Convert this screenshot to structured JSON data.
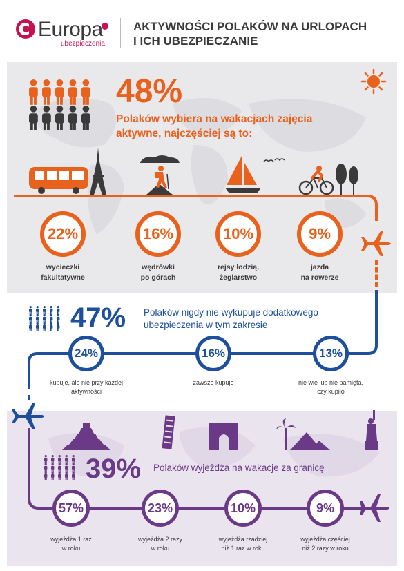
{
  "header": {
    "brand": "Europa",
    "brand_sub": "ubezpieczenia",
    "title_line1": "AKTYWNOŚCI POLAKÓW NA URLOPACH",
    "title_line2": "I ICH UBEZPIECZANIE"
  },
  "colors": {
    "brand_red": "#c6124f",
    "orange": "#e8621e",
    "blue": "#1d4f9c",
    "purple": "#6b3a86",
    "dark": "#3a3a3a",
    "panel_grey": "#e9e9ec",
    "panel_lilac": "#eae4ee"
  },
  "section1": {
    "percent": "48%",
    "text_line1": "Polaków wybiera na wakacjach zajęcia",
    "text_line2": "aktywne, najczęściej są to:",
    "people_highlighted": 5,
    "people_total": 10,
    "icons": [
      "bus-icon",
      "eiffel-tower-icon",
      "hiker-icon",
      "sailboat-icon",
      "cyclist-icon",
      "trees-icon",
      "sun-icon",
      "plane-icon"
    ],
    "items": [
      {
        "value": "22%",
        "label_line1": "wycieczki",
        "label_line2": "fakultatywne"
      },
      {
        "value": "16%",
        "label_line1": "wędrówki",
        "label_line2": "po górach"
      },
      {
        "value": "10%",
        "label_line1": "rejsy łodzią,",
        "label_line2": "żeglarstwo"
      },
      {
        "value": "9%",
        "label_line1": "jazda",
        "label_line2": "na rowerze"
      }
    ]
  },
  "section2": {
    "percent": "47%",
    "text_line1": "Polaków nigdy nie wykupuje dodatkowego",
    "text_line2": "ubezpieczenia w tym zakresie",
    "items": [
      {
        "value": "24%",
        "label_line1": "kupuje, ale nie przy każdej",
        "label_line2": "aktywności"
      },
      {
        "value": "16%",
        "label_line1": "zawsze kupuje",
        "label_line2": ""
      },
      {
        "value": "13%",
        "label_line1": "nie wie lub nie pamięta,",
        "label_line2": "czy kupiło"
      }
    ]
  },
  "section3": {
    "percent": "39%",
    "text": "Polaków wyjeżdża na wakacje za granicę",
    "icons": [
      "pyramid-temple-icon",
      "leaning-tower-icon",
      "triumphal-arch-icon",
      "palm-pyramids-icon",
      "statue-of-liberty-icon"
    ],
    "items": [
      {
        "value": "57%",
        "label_line1": "wyjeżdża 1 raz",
        "label_line2": "w roku"
      },
      {
        "value": "23%",
        "label_line1": "wyjeżdża 2 razy",
        "label_line2": "w roku"
      },
      {
        "value": "10%",
        "label_line1": "wyjeżdża rzadziej",
        "label_line2": "niż 1 raz w roku"
      },
      {
        "value": "9%",
        "label_line1": "wyjeżdża częściej",
        "label_line2": "niż 2 razy w roku"
      }
    ]
  }
}
